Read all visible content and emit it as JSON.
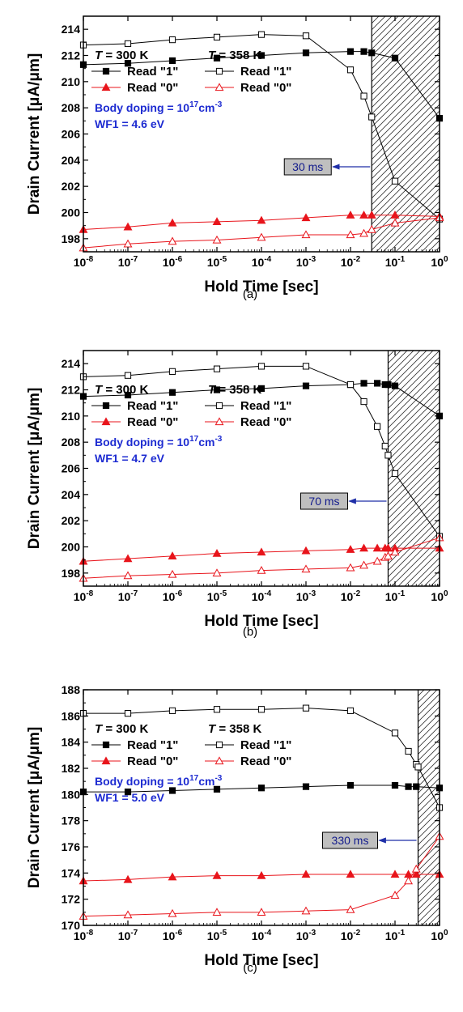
{
  "chart_data": [
    {
      "type": "line",
      "panel_label": "(a)",
      "xlabel": "Hold Time [sec]",
      "ylabel": "Drain Current [μA/μm]",
      "x_scale": "log",
      "xlim": [
        1e-08,
        1
      ],
      "ylim": [
        197,
        215
      ],
      "y_ticks": [
        198,
        200,
        202,
        204,
        206,
        208,
        210,
        212,
        214
      ],
      "legend": {
        "col1_title_italic": "T",
        "col1_title_rest": " = 300 K",
        "col2_title_italic": "T",
        "col2_title_rest": " = 358 K",
        "read1": "Read \"1\"",
        "read0": "Read \"0\""
      },
      "body_doping_text": "Body doping = 10",
      "body_doping_exp": "17",
      "body_doping_unit": "cm",
      "body_doping_unit_exp": "-3",
      "wf_text": "WF1 = 4.6 eV",
      "annotation": {
        "text": "30 ms",
        "x": 0.03
      },
      "series": [
        {
          "name": "300 K Read \"1\"",
          "color": "#000000",
          "marker": "square-filled",
          "x": [
            1e-08,
            1e-07,
            1e-06,
            1e-05,
            0.0001,
            0.001,
            0.01,
            0.02,
            0.03,
            0.1,
            1
          ],
          "y": [
            211.3,
            211.4,
            211.6,
            211.8,
            212.0,
            212.2,
            212.3,
            212.3,
            212.2,
            211.8,
            207.2
          ]
        },
        {
          "name": "358 K Read \"1\"",
          "color": "#000000",
          "marker": "square-open",
          "x": [
            1e-08,
            1e-07,
            1e-06,
            1e-05,
            0.0001,
            0.001,
            0.01,
            0.02,
            0.03,
            0.1,
            1
          ],
          "y": [
            212.8,
            212.9,
            213.2,
            213.4,
            213.6,
            213.5,
            210.9,
            208.9,
            207.3,
            202.4,
            199.5
          ]
        },
        {
          "name": "300 K Read \"0\"",
          "color": "#e8141b",
          "marker": "triangle-filled",
          "x": [
            1e-08,
            1e-07,
            1e-06,
            1e-05,
            0.0001,
            0.001,
            0.01,
            0.02,
            0.03,
            0.1,
            1
          ],
          "y": [
            198.7,
            198.9,
            199.2,
            199.3,
            199.4,
            199.6,
            199.8,
            199.8,
            199.8,
            199.8,
            199.7
          ]
        },
        {
          "name": "358 K Read \"0\"",
          "color": "#e8141b",
          "marker": "triangle-open",
          "x": [
            1e-08,
            1e-07,
            1e-06,
            1e-05,
            0.0001,
            0.001,
            0.01,
            0.02,
            0.03,
            0.1,
            1
          ],
          "y": [
            197.3,
            197.6,
            197.8,
            197.9,
            198.1,
            198.3,
            198.3,
            198.4,
            198.7,
            199.2,
            199.6
          ]
        }
      ]
    },
    {
      "type": "line",
      "panel_label": "(b)",
      "xlabel": "Hold Time [sec]",
      "ylabel": "Drain Current [μA/μm]",
      "x_scale": "log",
      "xlim": [
        1e-08,
        1
      ],
      "ylim": [
        197,
        215
      ],
      "y_ticks": [
        198,
        200,
        202,
        204,
        206,
        208,
        210,
        212,
        214
      ],
      "legend": {
        "col1_title_italic": "T",
        "col1_title_rest": " = 300 K",
        "col2_title_italic": "T",
        "col2_title_rest": " = 358 K",
        "read1": "Read \"1\"",
        "read0": "Read \"0\""
      },
      "body_doping_text": "Body doping = 10",
      "body_doping_exp": "17",
      "body_doping_unit": "cm",
      "body_doping_unit_exp": "-3",
      "wf_text": "WF1 = 4.7 eV",
      "annotation": {
        "text": "70 ms",
        "x": 0.07
      },
      "series": [
        {
          "name": "300 K Read \"1\"",
          "color": "#000000",
          "marker": "square-filled",
          "x": [
            1e-08,
            1e-07,
            1e-06,
            1e-05,
            0.0001,
            0.001,
            0.01,
            0.02,
            0.04,
            0.06,
            0.07,
            0.1,
            1
          ],
          "y": [
            211.5,
            211.6,
            211.8,
            212.0,
            212.1,
            212.3,
            212.4,
            212.5,
            212.5,
            212.4,
            212.4,
            212.3,
            210.0
          ]
        },
        {
          "name": "358 K Read \"1\"",
          "color": "#000000",
          "marker": "square-open",
          "x": [
            1e-08,
            1e-07,
            1e-06,
            1e-05,
            0.0001,
            0.001,
            0.01,
            0.02,
            0.04,
            0.06,
            0.07,
            0.1,
            1
          ],
          "y": [
            213.0,
            213.1,
            213.4,
            213.6,
            213.8,
            213.8,
            212.4,
            211.1,
            209.2,
            207.7,
            207.0,
            205.6,
            200.8
          ]
        },
        {
          "name": "300 K Read \"0\"",
          "color": "#e8141b",
          "marker": "triangle-filled",
          "x": [
            1e-08,
            1e-07,
            1e-06,
            1e-05,
            0.0001,
            0.001,
            0.01,
            0.02,
            0.04,
            0.06,
            0.07,
            0.1,
            1
          ],
          "y": [
            198.9,
            199.1,
            199.3,
            199.5,
            199.6,
            199.7,
            199.8,
            199.9,
            199.9,
            199.9,
            199.9,
            199.9,
            199.9
          ]
        },
        {
          "name": "358 K Read \"0\"",
          "color": "#e8141b",
          "marker": "triangle-open",
          "x": [
            1e-08,
            1e-07,
            1e-06,
            1e-05,
            0.0001,
            0.001,
            0.01,
            0.02,
            0.04,
            0.06,
            0.07,
            0.1,
            1
          ],
          "y": [
            197.6,
            197.8,
            197.9,
            198.0,
            198.2,
            198.3,
            198.4,
            198.6,
            198.9,
            199.2,
            199.3,
            199.6,
            200.7
          ]
        }
      ]
    },
    {
      "type": "line",
      "panel_label": "(c)",
      "xlabel": "Hold Time [sec]",
      "ylabel": "Drain Current [μA/μm]",
      "x_scale": "log",
      "xlim": [
        1e-08,
        1
      ],
      "ylim": [
        170,
        188
      ],
      "y_ticks": [
        170,
        172,
        174,
        176,
        178,
        180,
        182,
        184,
        186,
        188
      ],
      "legend": {
        "col1_title_italic": "T",
        "col1_title_rest": " = 300 K",
        "col2_title_italic": "T",
        "col2_title_rest": " = 358 K",
        "read1": "Read \"1\"",
        "read0": "Read \"0\""
      },
      "body_doping_text": "Body doping = 10",
      "body_doping_exp": "17",
      "body_doping_unit": "cm",
      "body_doping_unit_exp": "-3",
      "wf_text": "WF1 = 5.0 eV",
      "annotation": {
        "text": "330 ms",
        "x": 0.33
      },
      "series": [
        {
          "name": "300 K Read \"1\"",
          "color": "#000000",
          "marker": "square-filled",
          "x": [
            1e-08,
            1e-07,
            1e-06,
            1e-05,
            0.0001,
            0.001,
            0.01,
            0.1,
            0.2,
            0.3,
            1
          ],
          "y": [
            180.2,
            180.2,
            180.3,
            180.4,
            180.5,
            180.6,
            180.7,
            180.7,
            180.6,
            180.6,
            180.5
          ]
        },
        {
          "name": "358 K Read \"1\"",
          "color": "#000000",
          "marker": "square-open",
          "x": [
            1e-08,
            1e-07,
            1e-06,
            1e-05,
            0.0001,
            0.001,
            0.01,
            0.1,
            0.2,
            0.3,
            0.33,
            1
          ],
          "y": [
            186.2,
            186.2,
            186.4,
            186.5,
            186.5,
            186.6,
            186.4,
            184.7,
            183.3,
            182.3,
            182.1,
            179.0
          ]
        },
        {
          "name": "300 K Read \"0\"",
          "color": "#e8141b",
          "marker": "triangle-filled",
          "x": [
            1e-08,
            1e-07,
            1e-06,
            1e-05,
            0.0001,
            0.001,
            0.01,
            0.1,
            0.2,
            0.3,
            1
          ],
          "y": [
            173.4,
            173.5,
            173.7,
            173.8,
            173.8,
            173.9,
            173.9,
            173.9,
            173.9,
            173.9,
            173.9
          ]
        },
        {
          "name": "358 K Read \"0\"",
          "color": "#e8141b",
          "marker": "triangle-open",
          "x": [
            1e-08,
            1e-07,
            1e-06,
            1e-05,
            0.0001,
            0.001,
            0.01,
            0.1,
            0.2,
            0.3,
            1
          ],
          "y": [
            170.7,
            170.8,
            170.9,
            171.0,
            171.0,
            171.1,
            171.2,
            172.3,
            173.4,
            174.3,
            176.8
          ]
        }
      ]
    }
  ]
}
